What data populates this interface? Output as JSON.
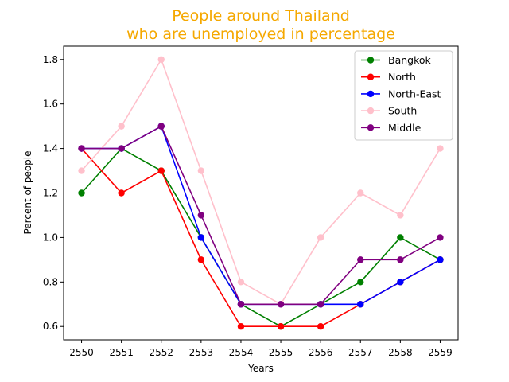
{
  "chart_data": {
    "type": "line",
    "title_lines": [
      "People around Thailand",
      "who are unemployed in percentage"
    ],
    "xlabel": "Years",
    "ylabel": "Percent of people",
    "x": [
      2550,
      2551,
      2552,
      2553,
      2554,
      2555,
      2556,
      2557,
      2558,
      2559
    ],
    "x_tick_labels": [
      "2550",
      "2551",
      "2552",
      "2553",
      "2554",
      "2555",
      "2556",
      "2557",
      "2558",
      "2559"
    ],
    "y_ticks": [
      0.6,
      0.8,
      1.0,
      1.2,
      1.4,
      1.6,
      1.8
    ],
    "y_tick_labels": [
      "0.6",
      "0.8",
      "1.0",
      "1.2",
      "1.4",
      "1.6",
      "1.8"
    ],
    "xlim": [
      2549.55,
      2559.45
    ],
    "ylim": [
      0.54,
      1.86
    ],
    "grid": false,
    "legend_position": "top-right",
    "series": [
      {
        "name": "Bangkok",
        "color": "#008000",
        "values": [
          1.2,
          1.4,
          1.3,
          1.0,
          0.7,
          0.6,
          0.7,
          0.8,
          1.0,
          0.9
        ]
      },
      {
        "name": "North",
        "color": "#ff0000",
        "values": [
          1.4,
          1.2,
          1.3,
          0.9,
          0.6,
          0.6,
          0.6,
          0.7,
          0.8,
          0.9
        ]
      },
      {
        "name": "North-East",
        "color": "#0000ff",
        "values": [
          1.4,
          1.4,
          1.5,
          1.0,
          0.7,
          0.7,
          0.7,
          0.7,
          0.8,
          0.9
        ]
      },
      {
        "name": "South",
        "color": "#ffc0cb",
        "values": [
          1.3,
          1.5,
          1.8,
          1.3,
          0.8,
          0.7,
          1.0,
          1.2,
          1.1,
          1.4
        ]
      },
      {
        "name": "Middle",
        "color": "#800080",
        "values": [
          1.4,
          1.4,
          1.5,
          1.1,
          0.7,
          0.7,
          0.7,
          0.9,
          0.9,
          1.0
        ]
      }
    ]
  }
}
